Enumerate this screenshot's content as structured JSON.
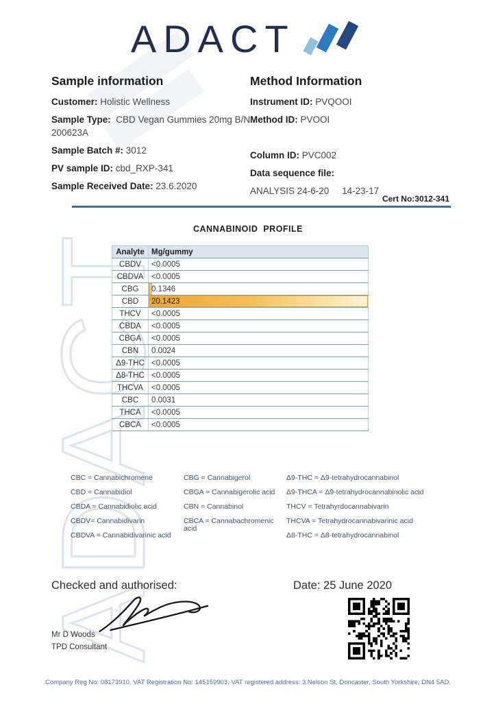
{
  "logo": {
    "text": "ADACT",
    "icon": "mountain-logo-icon",
    "colors": {
      "light": "#8fc0dc",
      "mid": "#2e7ac1",
      "dark": "#27487e",
      "navy": "#222e4b"
    }
  },
  "sample_info": {
    "title": "Sample information",
    "fields": [
      {
        "label": "Customer:",
        "value": "Holistic Wellness"
      },
      {
        "label": "Sample Type:",
        "value": " CBD Vegan Gummies 20mg B/N 200623A"
      },
      {
        "label": "Sample Batch #:",
        "value": "3012"
      },
      {
        "label": "PV sample ID:",
        "value": "cbd_RXP-341"
      },
      {
        "label": "Sample Received Date:",
        "value": "23.6.2020"
      }
    ]
  },
  "method_info": {
    "title": "Method Information",
    "fields": [
      {
        "label": "Instrument ID:",
        "value": "PVQOOI"
      },
      {
        "label": "Method ID:",
        "value": "PVOOI"
      },
      {
        "label": "",
        "value": "",
        "spacer": true
      },
      {
        "label": "Column ID:",
        "value": "PVC002"
      },
      {
        "label": "Data sequence file:",
        "value": ""
      },
      {
        "label": "",
        "value": "ANALYSIS 24-6-20     14-23-17"
      }
    ]
  },
  "cert_no": "Cert No:3012-341",
  "table": {
    "title": "CANNABINOID  PROFILE",
    "columns": [
      "Analyte",
      "Mg/gummy"
    ],
    "rows": [
      {
        "analyte": "CBDV",
        "value": "<0.0005",
        "bar_pct": 0
      },
      {
        "analyte": "CBDVA",
        "value": "<0.0005",
        "bar_pct": 0
      },
      {
        "analyte": "CBG",
        "value": "0.1346",
        "bar_pct": 1.6
      },
      {
        "analyte": "CBD",
        "value": "20.1423",
        "bar_pct": 100,
        "highlight": true
      },
      {
        "analyte": "THCV",
        "value": "<0.0005",
        "bar_pct": 0
      },
      {
        "analyte": "CBDA",
        "value": "<0.0005",
        "bar_pct": 0
      },
      {
        "analyte": "CBGA",
        "value": "<0.0005",
        "bar_pct": 0
      },
      {
        "analyte": "CBN",
        "value": "0.0024",
        "bar_pct": 0
      },
      {
        "analyte": "Δ9-THC",
        "value": "<0.0005",
        "bar_pct": 0
      },
      {
        "analyte": "Δ8-THC",
        "value": "<0.0005",
        "bar_pct": 0
      },
      {
        "analyte": "THCVA",
        "value": "<0.0005",
        "bar_pct": 0
      },
      {
        "analyte": "CBC",
        "value": "0.0031",
        "bar_pct": 0
      },
      {
        "analyte": "THCA",
        "value": "<0.0005",
        "bar_pct": 0
      },
      {
        "analyte": "CBCA",
        "value": "<0.0005",
        "bar_pct": 0
      }
    ]
  },
  "legend": {
    "col1": [
      "CBC = Cannabichromene",
      "CBD = Cannabidiol",
      "CBDA = Cannabidiolic acid",
      "CBDV= Cannabidivarin",
      "CBDVA = Cannabidivarinic acid"
    ],
    "col2": [
      "CBG = Cannabigerol",
      "CBGA = Cannabigerolic acid",
      "CBN = Cannabinol",
      "CBCA = Cannabachromenic acid"
    ],
    "col3": [
      "Δ9-THC = Δ9-tetrahydrocannabinol",
      "Δ9-THCA  = Δ9-tetrahydrocannabinolic acid",
      "THCV = Tetrahyrdocannabivarin",
      "THCVA = Tetrahydrocannabivarinic acid",
      "Δ8-THC = Δ8-tetrahydrocannabinol"
    ]
  },
  "footer": {
    "checked_label": "Checked and authorised:",
    "date": "Date: 25 June 2020",
    "signer_name": "Mr D Woods",
    "signer_title": "TPD Consultant"
  },
  "company_line": "Company Reg No: 08173910. VAT Registration No: 145159903. VAT registered address: 3 Nelson St, Doncaster, South Yorkshire, DN4 5AD.",
  "watermark_text": "ADACT"
}
